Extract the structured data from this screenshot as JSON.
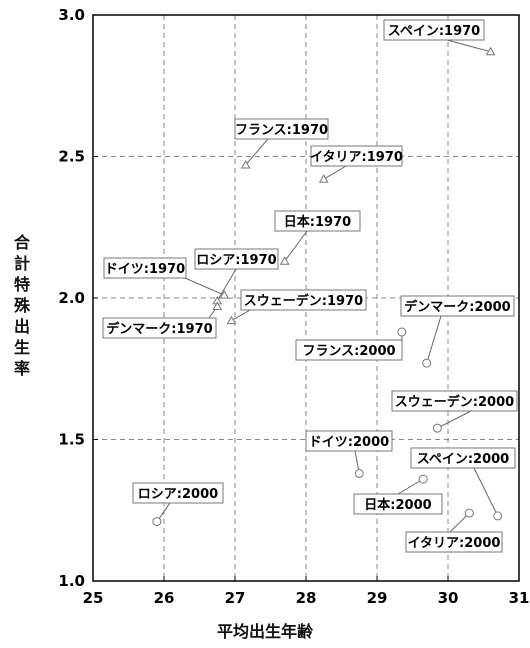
{
  "chart_data": {
    "type": "scatter",
    "title": "",
    "xlabel": "平均出生年齢",
    "ylabel": "合計特殊出生率",
    "xlim": [
      25,
      31
    ],
    "ylim": [
      1.0,
      3.0
    ],
    "x_ticks": [
      "25",
      "26",
      "27",
      "28",
      "29",
      "30",
      "31"
    ],
    "y_ticks": [
      "1.0",
      "1.5",
      "2.0",
      "2.5",
      "3.0"
    ],
    "grid": true,
    "series": [
      {
        "marker": "triangle",
        "points": [
          {
            "label": "スペイン:1970",
            "x": 30.6,
            "y": 2.87
          },
          {
            "label": "フランス:1970",
            "x": 27.15,
            "y": 2.47
          },
          {
            "label": "イタリア:1970",
            "x": 28.25,
            "y": 2.42
          },
          {
            "label": "日本:1970",
            "x": 27.7,
            "y": 2.13
          },
          {
            "label": "ドイツ:1970",
            "x": 26.85,
            "y": 2.01
          },
          {
            "label": "ロシア:1970",
            "x": 26.75,
            "y": 1.99
          },
          {
            "label": "デンマーク:1970",
            "x": 26.75,
            "y": 1.97
          },
          {
            "label": "スウェーデン:1970",
            "x": 26.95,
            "y": 1.92
          }
        ]
      },
      {
        "marker": "circle",
        "points": [
          {
            "label": "フランス:2000",
            "x": 29.35,
            "y": 1.88
          },
          {
            "label": "デンマーク:2000",
            "x": 29.7,
            "y": 1.77
          },
          {
            "label": "スウェーデン:2000",
            "x": 29.85,
            "y": 1.54
          },
          {
            "label": "ドイツ:2000",
            "x": 28.75,
            "y": 1.38
          },
          {
            "label": "日本:2000",
            "x": 29.65,
            "y": 1.36
          },
          {
            "label": "スペイン:2000",
            "x": 30.7,
            "y": 1.23
          },
          {
            "label": "イタリア:2000",
            "x": 30.3,
            "y": 1.24
          },
          {
            "label": "ロシア:2000",
            "x": 25.9,
            "y": 1.21
          }
        ]
      }
    ]
  }
}
